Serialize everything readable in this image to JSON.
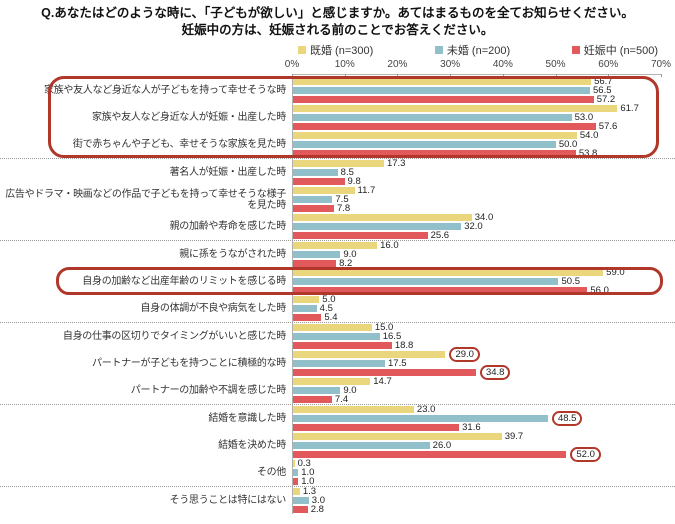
{
  "title": {
    "line1": "Q.あなたはどのような時に、「子どもが欲しい」と感じますか。あてはまるものを全てお知らせください。",
    "line2": "妊娠中の方は、妊娠される前のことでお答えください。"
  },
  "legend": [
    {
      "label": "既婚 (n=300)",
      "color": "#EAD67C"
    },
    {
      "label": "未婚 (n=200)",
      "color": "#92C0CA"
    },
    {
      "label": "妊娠中 (n=500)",
      "color": "#E2595C"
    }
  ],
  "chart_data": {
    "type": "bar",
    "orientation": "horizontal",
    "xlim": [
      0,
      70
    ],
    "ticks": [
      "0%",
      "10%",
      "20%",
      "30%",
      "40%",
      "50%",
      "60%",
      "70%"
    ],
    "series_names": [
      "既婚 (n=300)",
      "未婚 (n=200)",
      "妊娠中 (n=500)"
    ],
    "series_colors": [
      "#EAD67C",
      "#92C0CA",
      "#E2595C"
    ],
    "annotation_color": "#B0372A",
    "categories": [
      {
        "label": "家族や友人など身近な人が子どもを持って幸せそうな時",
        "values": [
          56.7,
          56.5,
          57.2
        ],
        "circled": []
      },
      {
        "label": "家族や友人など身近な人が妊娠・出産した時",
        "values": [
          61.7,
          53.0,
          57.6
        ],
        "circled": []
      },
      {
        "label": "街で赤ちゃんや子ども、幸せそうな家族を見た時",
        "values": [
          54.0,
          50.0,
          53.8
        ],
        "circled": []
      },
      {
        "label": "著名人が妊娠・出産した時",
        "values": [
          17.3,
          8.5,
          9.8
        ],
        "circled": [],
        "separator_above": true
      },
      {
        "label": "広告やドラマ・映画などの作品で子どもを持って幸せそうな様子を見た時",
        "values": [
          11.7,
          7.5,
          7.8
        ],
        "circled": []
      },
      {
        "label": "親の加齢や寿命を感じた時",
        "values": [
          34.0,
          32.0,
          25.6
        ],
        "circled": []
      },
      {
        "label": "親に孫をうながされた時",
        "values": [
          16.0,
          9.0,
          8.2
        ],
        "circled": [],
        "separator_above": true
      },
      {
        "label": "自身の加齢など出産年齢のリミットを感じる時",
        "values": [
          59.0,
          50.5,
          56.0
        ],
        "circled": []
      },
      {
        "label": "自身の体調が不良や病気をした時",
        "values": [
          5.0,
          4.5,
          5.4
        ],
        "circled": []
      },
      {
        "label": "自身の仕事の区切りでタイミングがいいと感じた時",
        "values": [
          15.0,
          16.5,
          18.8
        ],
        "circled": [],
        "separator_above": true
      },
      {
        "label": "パートナーが子どもを持つことに積極的な時",
        "values": [
          29.0,
          17.5,
          34.8
        ],
        "circled": [
          0,
          2
        ]
      },
      {
        "label": "パートナーの加齢や不調を感じた時",
        "values": [
          14.7,
          9.0,
          7.4
        ],
        "circled": []
      },
      {
        "label": "結婚を意識した時",
        "values": [
          23.0,
          48.5,
          31.6
        ],
        "circled": [
          1
        ],
        "separator_above": true
      },
      {
        "label": "結婚を決めた時",
        "values": [
          39.7,
          26.0,
          52.0
        ],
        "circled": [
          2
        ]
      },
      {
        "label": "その他",
        "values": [
          0.3,
          1.0,
          1.0
        ],
        "circled": []
      },
      {
        "label": "そう思うことは特にはない",
        "values": [
          1.3,
          3.0,
          2.8
        ],
        "circled": [],
        "separator_above": true
      }
    ],
    "boxes": [
      {
        "from_row": 0,
        "to_row": 2
      },
      {
        "from_row": 7,
        "to_row": 7
      }
    ]
  }
}
